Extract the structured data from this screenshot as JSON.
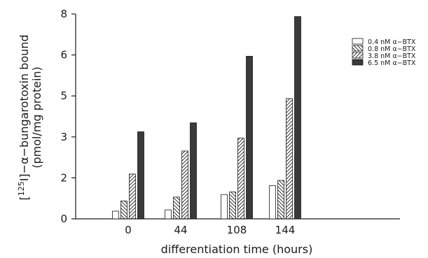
{
  "chart_data": {
    "type": "bar",
    "categories": [
      "0",
      "44",
      "108",
      "144"
    ],
    "series": [
      {
        "name": "0.4 nM α−BTX",
        "fill": "open",
        "values": [
          0.3,
          0.35,
          0.95,
          1.3
        ]
      },
      {
        "name": "0.8 nM α−BTX",
        "fill": "diagonal-left",
        "values": [
          0.7,
          0.85,
          1.05,
          1.5
        ]
      },
      {
        "name": "3.8 nM α−BTX",
        "fill": "diagonal-right",
        "values": [
          1.75,
          2.65,
          3.15,
          4.7
        ]
      },
      {
        "name": "6.5 nM α−BTX",
        "fill": "solid",
        "values": [
          3.4,
          3.75,
          6.35,
          7.9
        ]
      }
    ],
    "y_ticks": [
      "0",
      "2",
      "3",
      "5",
      "6",
      "8"
    ],
    "y_tick_values": [
      0,
      1.6,
      3.2,
      4.8,
      6.4,
      8.0
    ],
    "ylim": [
      0,
      8
    ],
    "xlabel": "differentiation time  (hours)",
    "ylabel_line1": "[125I]−α−bungarotoxin bound",
    "ylabel_line2": "(pmol/mg protein)",
    "legend_position": "top-right",
    "grid": false,
    "colors": {
      "ink": "#1a1a1a",
      "solid_bar": "#3a3a3a",
      "background": "#ffffff"
    }
  }
}
